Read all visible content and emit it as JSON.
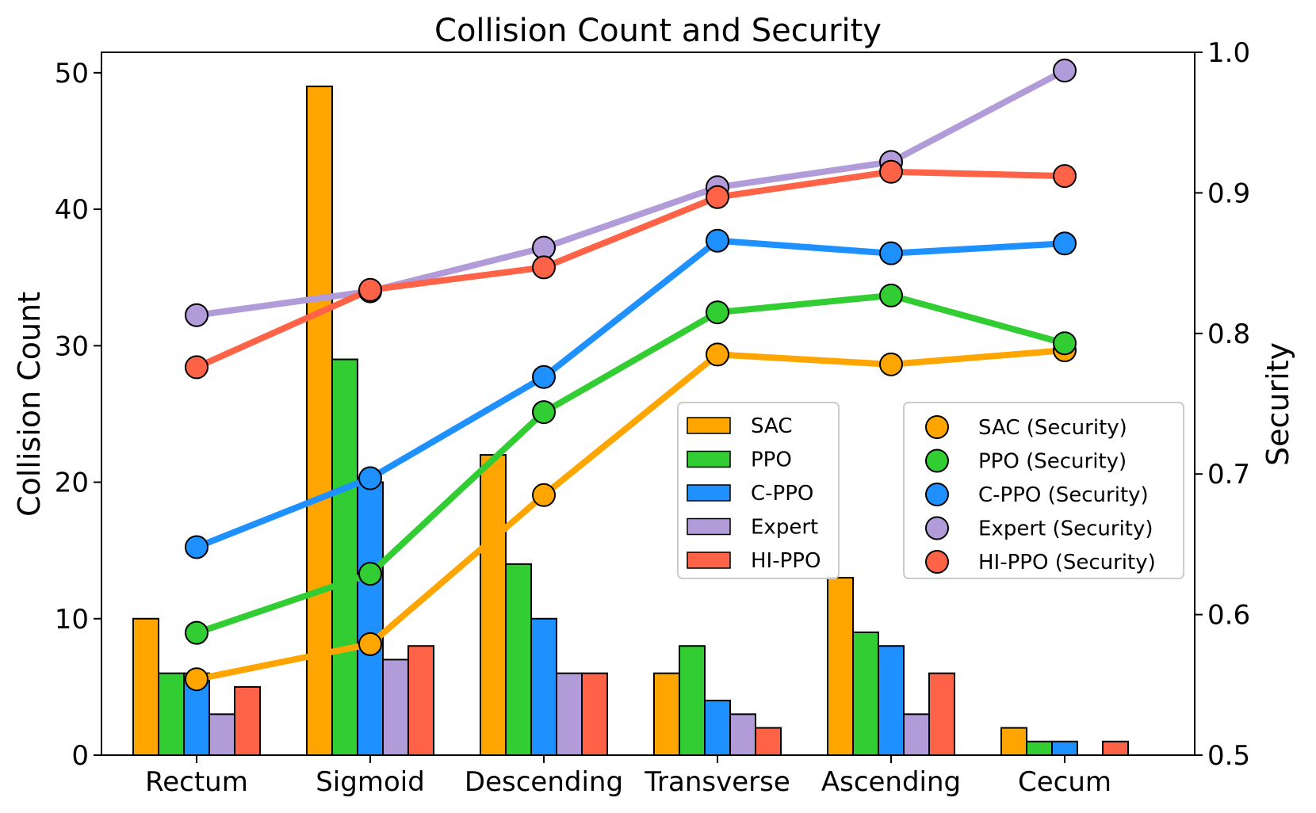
{
  "chart_data": {
    "type": "bar",
    "title": "Collision Count and Security",
    "xlabel": "",
    "ylabel": "Collision Count",
    "ylabel_right": "Security",
    "categories": [
      "Rectum",
      "Sigmoid",
      "Descending",
      "Transverse",
      "Ascending",
      "Cecum"
    ],
    "ylim": [
      0,
      51.5
    ],
    "ylim_right": [
      0.5,
      1.0
    ],
    "yticks": [
      0,
      10,
      20,
      30,
      40,
      50
    ],
    "yticks_right": [
      "0.5",
      "0.6",
      "0.7",
      "0.8",
      "0.9",
      "1.0"
    ],
    "series": [
      {
        "name": "SAC",
        "color": "#FFA500",
        "values": [
          10,
          49,
          22,
          6,
          13,
          2
        ]
      },
      {
        "name": "PPO",
        "color": "#32CD32",
        "values": [
          6,
          29,
          14,
          8,
          9,
          1
        ]
      },
      {
        "name": "C-PPO",
        "color": "#1E90FF",
        "values": [
          6,
          20,
          10,
          4,
          8,
          1
        ]
      },
      {
        "name": "Expert",
        "color": "#B19CD9",
        "values": [
          3,
          7,
          6,
          3,
          3,
          0
        ]
      },
      {
        "name": "HI-PPO",
        "color": "#FF6347",
        "values": [
          5,
          8,
          6,
          2,
          6,
          1
        ]
      }
    ],
    "security_series": [
      {
        "name": "SAC (Security)",
        "color": "#FFA500",
        "values": [
          0.554,
          0.579,
          0.685,
          0.785,
          0.778,
          0.788
        ]
      },
      {
        "name": "PPO (Security)",
        "color": "#32CD32",
        "values": [
          0.587,
          0.629,
          0.744,
          0.815,
          0.827,
          0.793
        ]
      },
      {
        "name": "C-PPO (Security)",
        "color": "#1E90FF",
        "values": [
          0.648,
          0.697,
          0.769,
          0.866,
          0.857,
          0.864
        ]
      },
      {
        "name": "Expert (Security)",
        "color": "#B19CD9",
        "values": [
          0.813,
          0.83,
          0.861,
          0.904,
          0.922,
          0.987
        ]
      },
      {
        "name": "HI-PPO (Security)",
        "color": "#FF6347",
        "values": [
          0.776,
          0.831,
          0.847,
          0.897,
          0.915,
          0.912
        ]
      }
    ]
  }
}
